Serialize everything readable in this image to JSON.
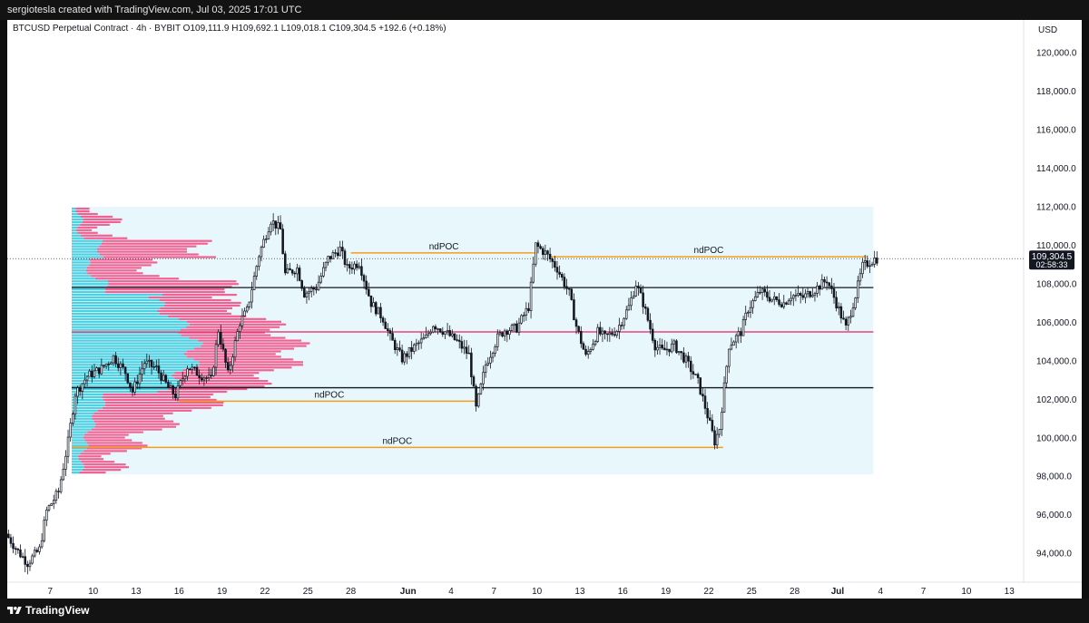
{
  "header": {
    "caption": "sergiotesla created with TradingView.com, Jul 03, 2025 17:01 UTC"
  },
  "footer": {
    "brand": "TradingView"
  },
  "chart_data": {
    "type": "candlestick",
    "legend": {
      "symbol": "BTCUSD Perpetual Contract · 4h · BYBIT",
      "open": "O109,111.9",
      "high": "H109,692.1",
      "low": "L109,018.1",
      "close": "C109,304.5",
      "change": "+192.6 (+0.18%)"
    },
    "currency": "USD",
    "ylim": [
      92500,
      121700
    ],
    "y_ticks": [
      94000,
      96000,
      98000,
      100000,
      102000,
      104000,
      106000,
      108000,
      110000,
      112000,
      114000,
      116000,
      118000,
      120000
    ],
    "y_tick_labels": [
      "94,000.0",
      "96,000.0",
      "98,000.0",
      "100,000.0",
      "102,000.0",
      "104,000.0",
      "106,000.0",
      "108,000.0",
      "110,000.0",
      "112,000.0",
      "114,000.0",
      "116,000.0",
      "118,000.0",
      "120,000.0"
    ],
    "x_range": [
      "2025-05-04T00:00",
      "2025-07-14T00:00"
    ],
    "x_ticks": [
      {
        "date": "2025-05-07",
        "label": "7",
        "bold": false
      },
      {
        "date": "2025-05-10",
        "label": "10",
        "bold": false
      },
      {
        "date": "2025-05-13",
        "label": "13",
        "bold": false
      },
      {
        "date": "2025-05-16",
        "label": "16",
        "bold": false
      },
      {
        "date": "2025-05-19",
        "label": "19",
        "bold": false
      },
      {
        "date": "2025-05-22",
        "label": "22",
        "bold": false
      },
      {
        "date": "2025-05-25",
        "label": "25",
        "bold": false
      },
      {
        "date": "2025-05-28",
        "label": "28",
        "bold": false
      },
      {
        "date": "2025-06-01",
        "label": "Jun",
        "bold": true
      },
      {
        "date": "2025-06-04",
        "label": "4",
        "bold": false
      },
      {
        "date": "2025-06-07",
        "label": "7",
        "bold": false
      },
      {
        "date": "2025-06-10",
        "label": "10",
        "bold": false
      },
      {
        "date": "2025-06-13",
        "label": "13",
        "bold": false
      },
      {
        "date": "2025-06-16",
        "label": "16",
        "bold": false
      },
      {
        "date": "2025-06-19",
        "label": "19",
        "bold": false
      },
      {
        "date": "2025-06-22",
        "label": "22",
        "bold": false
      },
      {
        "date": "2025-06-25",
        "label": "25",
        "bold": false
      },
      {
        "date": "2025-06-28",
        "label": "28",
        "bold": false
      },
      {
        "date": "2025-07-01",
        "label": "Jul",
        "bold": true
      },
      {
        "date": "2025-07-04",
        "label": "4",
        "bold": false
      },
      {
        "date": "2025-07-07",
        "label": "7",
        "bold": false
      },
      {
        "date": "2025-07-10",
        "label": "10",
        "bold": false
      },
      {
        "date": "2025-07-13",
        "label": "13",
        "bold": false
      }
    ],
    "price_path": [
      [
        "2025-05-04T00:00",
        95000
      ],
      [
        "2025-05-04T20:00",
        94100
      ],
      [
        "2025-05-05T12:00",
        93500
      ],
      [
        "2025-05-06T08:00",
        94200
      ],
      [
        "2025-05-06T20:00",
        96200
      ],
      [
        "2025-05-07T16:00",
        97200
      ],
      [
        "2025-05-08T08:00",
        99800
      ],
      [
        "2025-05-08T20:00",
        102300
      ],
      [
        "2025-05-09T16:00",
        103200
      ],
      [
        "2025-05-10T16:00",
        103600
      ],
      [
        "2025-05-11T12:00",
        104200
      ],
      [
        "2025-05-12T08:00",
        103400
      ],
      [
        "2025-05-12T20:00",
        102400
      ],
      [
        "2025-05-13T16:00",
        103900
      ],
      [
        "2025-05-14T12:00",
        103600
      ],
      [
        "2025-05-15T08:00",
        102600
      ],
      [
        "2025-05-15T20:00",
        102200
      ],
      [
        "2025-05-16T16:00",
        103700
      ],
      [
        "2025-05-17T12:00",
        103300
      ],
      [
        "2025-05-18T08:00",
        103000
      ],
      [
        "2025-05-18T20:00",
        105600
      ],
      [
        "2025-05-19T12:00",
        103300
      ],
      [
        "2025-05-20T08:00",
        106000
      ],
      [
        "2025-05-20T20:00",
        106600
      ],
      [
        "2025-05-21T16:00",
        109500
      ],
      [
        "2025-05-22T12:00",
        111300
      ],
      [
        "2025-05-23T04:00",
        110800
      ],
      [
        "2025-05-23T12:00",
        108500
      ],
      [
        "2025-05-24T08:00",
        108800
      ],
      [
        "2025-05-24T20:00",
        107500
      ],
      [
        "2025-05-25T16:00",
        107800
      ],
      [
        "2025-05-26T12:00",
        109300
      ],
      [
        "2025-05-27T08:00",
        109800
      ],
      [
        "2025-05-27T20:00",
        108800
      ],
      [
        "2025-05-28T16:00",
        109100
      ],
      [
        "2025-05-29T12:00",
        107000
      ],
      [
        "2025-05-30T08:00",
        106200
      ],
      [
        "2025-05-30T20:00",
        105200
      ],
      [
        "2025-05-31T16:00",
        104100
      ],
      [
        "2025-06-01T12:00",
        104700
      ],
      [
        "2025-06-02T08:00",
        105200
      ],
      [
        "2025-06-02T20:00",
        105900
      ],
      [
        "2025-06-03T16:00",
        105500
      ],
      [
        "2025-06-04T12:00",
        105000
      ],
      [
        "2025-06-05T08:00",
        104300
      ],
      [
        "2025-06-05T20:00",
        101500
      ],
      [
        "2025-06-06T12:00",
        103800
      ],
      [
        "2025-06-07T08:00",
        105200
      ],
      [
        "2025-06-07T20:00",
        105600
      ],
      [
        "2025-06-08T16:00",
        105700
      ],
      [
        "2025-06-09T12:00",
        106800
      ],
      [
        "2025-06-10T00:00",
        110000
      ],
      [
        "2025-06-10T16:00",
        109600
      ],
      [
        "2025-06-11T12:00",
        108800
      ],
      [
        "2025-06-12T08:00",
        107500
      ],
      [
        "2025-06-12T20:00",
        105800
      ],
      [
        "2025-06-13T12:00",
        104200
      ],
      [
        "2025-06-14T08:00",
        105500
      ],
      [
        "2025-06-14T20:00",
        105200
      ],
      [
        "2025-06-15T16:00",
        105600
      ],
      [
        "2025-06-16T12:00",
        106800
      ],
      [
        "2025-06-17T00:00",
        108000
      ],
      [
        "2025-06-17T12:00",
        107000
      ],
      [
        "2025-06-18T08:00",
        104800
      ],
      [
        "2025-06-18T20:00",
        104500
      ],
      [
        "2025-06-19T16:00",
        104800
      ],
      [
        "2025-06-20T12:00",
        104000
      ],
      [
        "2025-06-21T08:00",
        102900
      ],
      [
        "2025-06-21T20:00",
        101600
      ],
      [
        "2025-06-22T12:00",
        99800
      ],
      [
        "2025-06-22T20:00",
        100500
      ],
      [
        "2025-06-23T12:00",
        104800
      ],
      [
        "2025-06-24T08:00",
        105500
      ],
      [
        "2025-06-24T20:00",
        106700
      ],
      [
        "2025-06-25T16:00",
        107600
      ],
      [
        "2025-06-26T12:00",
        107200
      ],
      [
        "2025-06-27T08:00",
        107000
      ],
      [
        "2025-06-27T20:00",
        107400
      ],
      [
        "2025-06-28T16:00",
        107300
      ],
      [
        "2025-06-29T12:00",
        107700
      ],
      [
        "2025-06-30T08:00",
        108200
      ],
      [
        "2025-06-30T20:00",
        107300
      ],
      [
        "2025-07-01T16:00",
        105700
      ],
      [
        "2025-07-02T08:00",
        107400
      ],
      [
        "2025-07-02T20:00",
        108900
      ],
      [
        "2025-07-03T17:00",
        109304.5
      ]
    ],
    "ndpoc_levels": [
      {
        "label": "ndPOC",
        "price": 109600,
        "from": "2025-05-28T00:00",
        "to": "2025-06-10T00:00"
      },
      {
        "label": "ndPOC",
        "price": 109400,
        "from": "2025-06-11T00:00",
        "to": "2025-07-03T00:00"
      },
      {
        "label": "ndPOC",
        "price": 101900,
        "from": "2025-05-16T00:00",
        "to": "2025-06-06T00:00"
      },
      {
        "label": "ndPOC",
        "price": 99500,
        "from": "2025-05-08T12:00",
        "to": "2025-06-23T00:00"
      }
    ],
    "range_lines": [
      {
        "name": "value-area-high",
        "price": 107800,
        "color": "#131722"
      },
      {
        "name": "point-of-control",
        "price": 105500,
        "color": "#e91e63"
      },
      {
        "name": "value-area-low",
        "price": 102600,
        "color": "#131722"
      }
    ],
    "profile_box": {
      "from": "2025-05-08T12:00",
      "to": "2025-07-03T12:00",
      "top": 112000,
      "bottom": 98100
    },
    "last_price": {
      "value": "109,304.5",
      "countdown": "02:58:33",
      "price": 109304.5
    },
    "colors": {
      "candle": "#131722",
      "ndpoc": "#f59d1b",
      "poc": "#e91e63",
      "volume_buy": "#4dd0e1",
      "volume_sell": "#f06292",
      "box": "#e8f7fc"
    }
  }
}
